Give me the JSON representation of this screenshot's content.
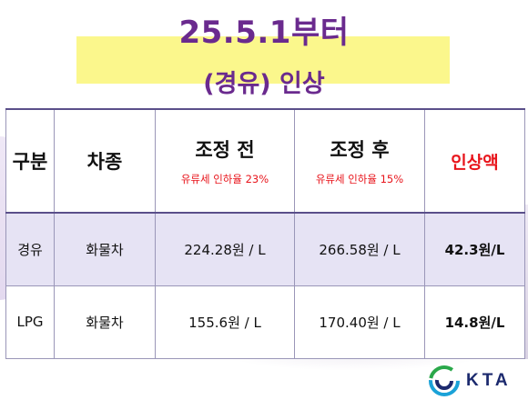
{
  "title": {
    "line1": "25.5.1부터",
    "line2": "(경유) 인상"
  },
  "table": {
    "headers": {
      "category": "구분",
      "vehicle": "차종",
      "before": "조정 전",
      "before_note": "유류세 인하율 23%",
      "after": "조정 후",
      "after_note": "유류세 인하율 15%",
      "increase": "인상액"
    },
    "rows": [
      {
        "fuel": "경유",
        "vehicle": "화물차",
        "before": "224.28원 / L",
        "after": "266.58원 / L",
        "increase": "42.3원/L"
      },
      {
        "fuel": "LPG",
        "vehicle": "화물차",
        "before": "155.6원 / L",
        "after": "170.40원 / L",
        "increase": "14.8원/L"
      }
    ]
  },
  "logo": {
    "text": "KTA"
  },
  "colors": {
    "title": "#6a2a8e",
    "highlight": "#fbf78c",
    "accent_red": "#e8141b",
    "row_shade": "#e6e3f4",
    "logo_blue": "#1c2a6e",
    "logo_green": "#2aa84a",
    "logo_cyan": "#1aa2d8"
  }
}
